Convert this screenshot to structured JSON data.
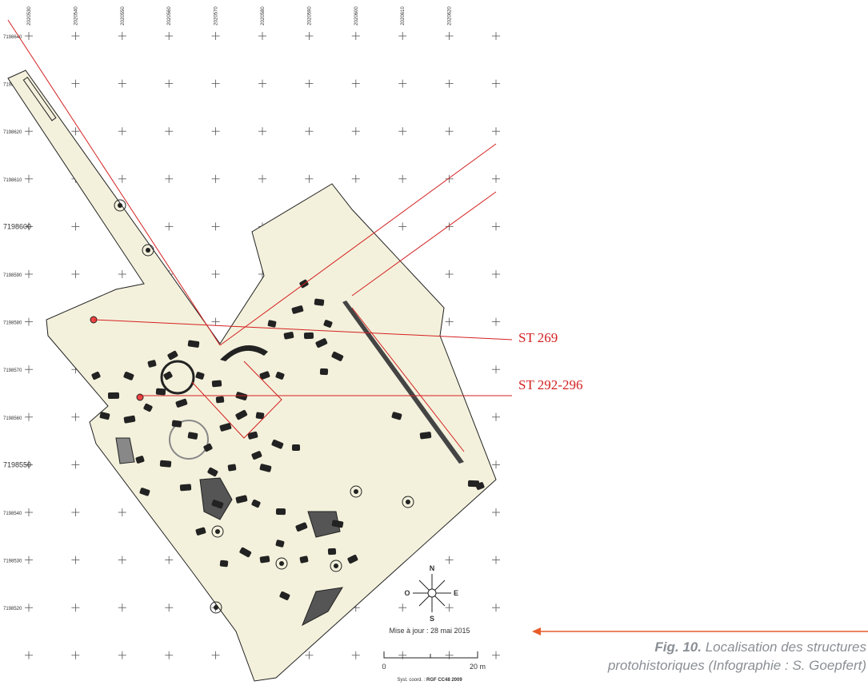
{
  "map": {
    "x_labels": [
      "2020530",
      "2020540",
      "2020550",
      "2020560",
      "2020570",
      "2020580",
      "2020590",
      "2020600",
      "2020610",
      "2020620"
    ],
    "y_labels": [
      "7198640",
      "7198630",
      "7198620",
      "7198610",
      "7198600",
      "7198590",
      "7198580",
      "7198570",
      "7198560",
      "7198550",
      "7198540",
      "7198530",
      "7198520"
    ],
    "callouts": [
      "ST 269",
      "ST 292-296"
    ],
    "compass": {
      "north": "N",
      "west": "O",
      "east": "E",
      "south": "S"
    },
    "update": "Mise à jour : 28 mai 2015",
    "scale": {
      "start": "0",
      "end": "20 m"
    },
    "coord_system": {
      "label": "Syst. coord. :",
      "value": "RGF CC48 2009"
    }
  },
  "caption": {
    "figure": "Fig. 10.",
    "line1": "Localisation des structures",
    "line2": "protohistoriques (Infographie : S. Goepfert)"
  }
}
